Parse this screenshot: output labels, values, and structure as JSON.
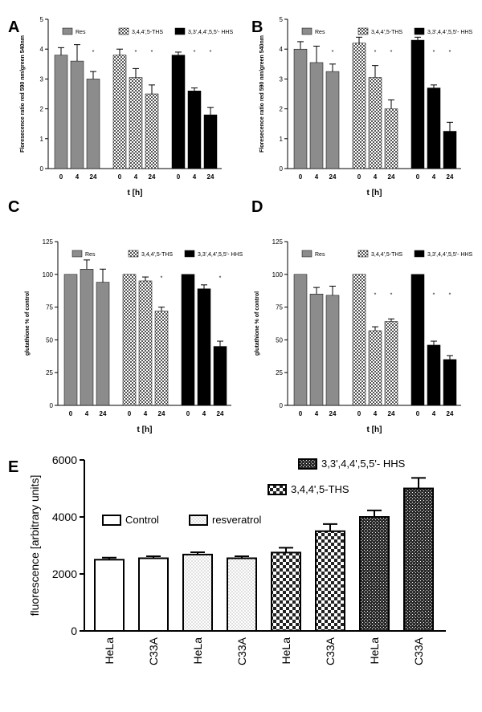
{
  "colors": {
    "res": "#8c8c8c",
    "ths_pattern": "checker",
    "hhs": "#000000",
    "control": "#ffffff",
    "resveratrol_pattern": "dots",
    "ths_E_pattern": "checker",
    "hhs_E_pattern": "dense-hatch"
  },
  "chart_data": [
    {
      "panel": "A",
      "type": "bar",
      "ylabel": "Floresecence ratio red 590 nm/green 540nm",
      "xlabel": "t [h]",
      "ylim": [
        0,
        5
      ],
      "yticks": [
        "0",
        "1",
        "2",
        "3",
        "4",
        "5"
      ],
      "categories": [
        "0",
        "4",
        "24",
        "0",
        "4",
        "24",
        "0",
        "4",
        "24"
      ],
      "groups": [
        {
          "name": "Res",
          "values": [
            3.8,
            3.6,
            3.0
          ],
          "errors": [
            0.25,
            0.55,
            0.25
          ],
          "stars": [
            "",
            "",
            "*"
          ]
        },
        {
          "name": "3,4,4',5-THS",
          "values": [
            3.8,
            3.05,
            2.5
          ],
          "errors": [
            0.2,
            0.3,
            0.3
          ],
          "stars": [
            "",
            "*",
            "*"
          ]
        },
        {
          "name": "3,3',4,4',5,5'- HHS",
          "values": [
            3.8,
            2.6,
            1.8
          ],
          "errors": [
            0.1,
            0.1,
            0.25
          ],
          "stars": [
            "",
            "*",
            "*"
          ]
        }
      ]
    },
    {
      "panel": "B",
      "type": "bar",
      "ylabel": "Floresecence ratio red 590 nm/green 540nm",
      "xlabel": "t [h]",
      "ylim": [
        0,
        5
      ],
      "yticks": [
        "0",
        "1",
        "2",
        "3",
        "4",
        "5"
      ],
      "categories": [
        "0",
        "4",
        "24",
        "0",
        "4",
        "24",
        "0",
        "4",
        "24"
      ],
      "groups": [
        {
          "name": "Res",
          "values": [
            4.0,
            3.55,
            3.25
          ],
          "errors": [
            0.25,
            0.55,
            0.25
          ],
          "stars": [
            "",
            "",
            "*"
          ]
        },
        {
          "name": "3,4,4',5-THS",
          "values": [
            4.2,
            3.05,
            2.0
          ],
          "errors": [
            0.2,
            0.4,
            0.3
          ],
          "stars": [
            "",
            "*",
            "*"
          ]
        },
        {
          "name": "3,3',4,4',5,5'- HHS",
          "values": [
            4.3,
            2.7,
            1.25
          ],
          "errors": [
            0.1,
            0.1,
            0.3
          ],
          "stars": [
            "",
            "*",
            "*"
          ]
        }
      ]
    },
    {
      "panel": "C",
      "type": "bar",
      "ylabel": "glutathione % of control",
      "xlabel": "t [h]",
      "ylim": [
        0,
        125
      ],
      "yticks": [
        "0",
        "25",
        "50",
        "75",
        "100",
        "125"
      ],
      "categories": [
        "0",
        "4",
        "24",
        "0",
        "4",
        "24",
        "0",
        "4",
        "24"
      ],
      "groups": [
        {
          "name": "Res",
          "values": [
            100,
            104,
            94
          ],
          "errors": [
            0,
            7,
            10
          ],
          "stars": [
            "",
            "",
            ""
          ]
        },
        {
          "name": "3,4,4',5-THS",
          "values": [
            100,
            95,
            72
          ],
          "errors": [
            0,
            3,
            3
          ],
          "stars": [
            "",
            "",
            "*"
          ]
        },
        {
          "name": "3,3',4,4',5,5'- HHS",
          "values": [
            100,
            89,
            45
          ],
          "errors": [
            0,
            3,
            4
          ],
          "stars": [
            "",
            "",
            "*"
          ]
        }
      ]
    },
    {
      "panel": "D",
      "type": "bar",
      "ylabel": "glutathione % of control",
      "xlabel": "t [h]",
      "ylim": [
        0,
        125
      ],
      "yticks": [
        "0",
        "25",
        "50",
        "75",
        "100",
        "125"
      ],
      "categories": [
        "0",
        "4",
        "24",
        "0",
        "4",
        "24",
        "0",
        "4",
        "24"
      ],
      "groups": [
        {
          "name": "Res",
          "values": [
            100,
            85,
            84
          ],
          "errors": [
            0,
            5,
            7
          ],
          "stars": [
            "",
            "",
            ""
          ]
        },
        {
          "name": "3,4,4',5-THS",
          "values": [
            100,
            57,
            64
          ],
          "errors": [
            0,
            3,
            2
          ],
          "stars": [
            "",
            "*",
            "*"
          ]
        },
        {
          "name": "3,3',4,4',5,5'- HHS",
          "values": [
            100,
            46,
            35
          ],
          "errors": [
            0,
            3,
            3
          ],
          "stars": [
            "",
            "*",
            "*"
          ]
        }
      ]
    },
    {
      "panel": "E",
      "type": "bar",
      "ylabel": "fluorescence [arbitrary units]",
      "ylim": [
        0,
        6000
      ],
      "yticks": [
        "0",
        "2000",
        "4000",
        "6000"
      ],
      "categories": [
        "HeLa",
        "C33A",
        "HeLa",
        "C33A",
        "HeLa",
        "C33A",
        "HeLa",
        "C33A"
      ],
      "groups": [
        {
          "name": "Control",
          "values": [
            2500,
            2550
          ],
          "errors": [
            70,
            70
          ]
        },
        {
          "name": "resveratrol",
          "values": [
            2680,
            2550
          ],
          "errors": [
            80,
            70
          ]
        },
        {
          "name": "3,4,4',5-THS",
          "values": [
            2750,
            3500
          ],
          "errors": [
            170,
            250
          ]
        },
        {
          "name": "3,3',4,4',5,5'- HHS",
          "values": [
            4000,
            5000
          ],
          "errors": [
            230,
            370
          ]
        }
      ]
    }
  ]
}
